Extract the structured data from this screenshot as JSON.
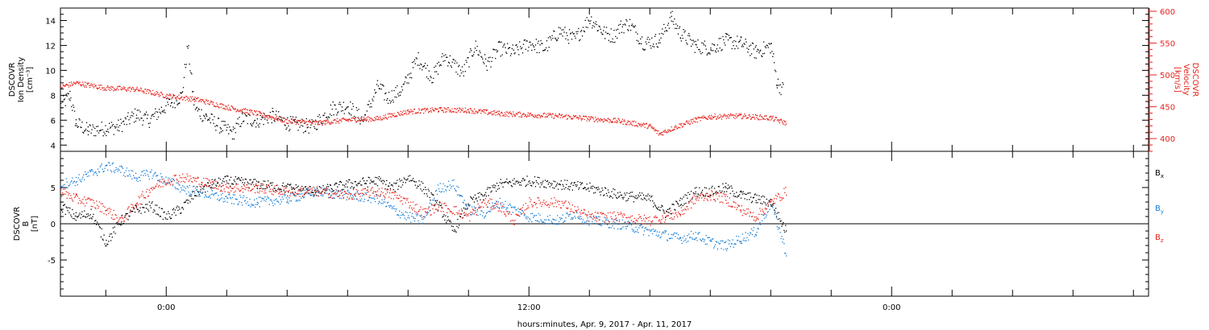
{
  "chart_data": [
    {
      "type": "scatter",
      "title": "",
      "xlabel": "hours:minutes, Apr.  9, 2017 - Apr. 11, 2017",
      "x_range_hours": [
        -3.5,
        32.5
      ],
      "x_tick_labels": [
        {
          "hour": 0,
          "label": "0:00"
        },
        {
          "hour": 12,
          "label": "12:00"
        },
        {
          "hour": 24,
          "label": "0:00"
        }
      ],
      "data_end_hour": 20.5,
      "left_axis": {
        "label_lines": [
          "DSCOVR",
          "Ion Density",
          "[cm⁻³]"
        ],
        "ylim": [
          3.5,
          15
        ],
        "ticks": [
          4,
          6,
          8,
          10,
          12,
          14
        ],
        "color": "#000000"
      },
      "right_axis": {
        "label_lines": [
          "DSCOVR",
          "Velocity",
          "[km/s]"
        ],
        "ylim": [
          380,
          605
        ],
        "ticks": [
          400,
          450,
          500,
          550,
          600
        ],
        "color": "#e8231c"
      },
      "series": [
        {
          "axis": "left",
          "color": "#000000",
          "x": [
            -3.5,
            -3.2,
            -3.0,
            -2.6,
            -2.0,
            -1.6,
            -1.0,
            -0.6,
            0,
            0.5,
            0.7,
            0.9,
            1.0,
            1.3,
            1.8,
            2.2,
            2.5,
            3.0,
            3.5,
            4.0,
            4.8,
            5.5,
            6.0,
            6.5,
            7.0,
            7.3,
            7.8,
            8.3,
            8.8,
            9.2,
            9.8,
            10.2,
            10.6,
            11.0,
            11.5,
            12.0,
            12.5,
            13.0,
            13.5,
            14.0,
            14.5,
            14.8,
            15.0,
            15.3,
            15.8,
            16.3,
            16.7,
            17.0,
            17.5,
            18.0,
            18.5,
            19.0,
            19.5,
            20.0,
            20.2,
            20.4
          ],
          "y": [
            7.2,
            8.0,
            5.8,
            5.2,
            5.4,
            5.5,
            6.5,
            6.0,
            7.2,
            8.0,
            12.0,
            7.5,
            6.8,
            6.3,
            5.5,
            5.0,
            6.2,
            6.0,
            6.4,
            5.8,
            5.5,
            7.0,
            7.2,
            6.0,
            8.8,
            7.8,
            8.5,
            11.0,
            9.5,
            11.2,
            9.8,
            12.0,
            10.5,
            11.8,
            11.5,
            12.2,
            11.8,
            13.2,
            12.5,
            14.2,
            13.0,
            12.8,
            13.5,
            13.8,
            12.2,
            12.5,
            14.3,
            13.0,
            12.0,
            11.8,
            12.4,
            12.2,
            11.5,
            12.0,
            9.0,
            8.5
          ]
        },
        {
          "axis": "right",
          "color": "#e8231c",
          "x": [
            -3.5,
            -3.0,
            -2.0,
            -1.0,
            0,
            1.0,
            2.0,
            3.0,
            4.0,
            5.0,
            6.0,
            7.0,
            7.5,
            8.0,
            9.0,
            10.0,
            11.0,
            12.0,
            13.0,
            14.0,
            15.0,
            16.0,
            16.3,
            16.8,
            17.5,
            18.0,
            19.0,
            20.0,
            20.5
          ],
          "y": [
            482,
            488,
            480,
            478,
            468,
            462,
            450,
            440,
            428,
            425,
            430,
            432,
            438,
            443,
            446,
            445,
            440,
            438,
            436,
            432,
            428,
            420,
            408,
            418,
            430,
            435,
            436,
            433,
            425
          ]
        }
      ]
    },
    {
      "type": "scatter",
      "title": "",
      "xlabel": "hours:minutes, Apr.  9, 2017 - Apr. 11, 2017",
      "ylabel_lines": [
        "DSCOVR",
        "B",
        "[nT]"
      ],
      "ylim": [
        -10,
        10
      ],
      "ticks": [
        -5,
        0,
        5
      ],
      "zero_line": true,
      "series": [
        {
          "name": "B",
          "sub": "x",
          "color": "#000000",
          "x": [
            -3.5,
            -3.0,
            -2.5,
            -2.0,
            -1.5,
            -1.0,
            -0.5,
            0,
            0.5,
            1.0,
            1.5,
            2.0,
            3.0,
            4.0,
            5.0,
            6.0,
            7.0,
            7.5,
            8.0,
            8.5,
            9.0,
            9.5,
            10.0,
            10.5,
            11.0,
            12.0,
            13.0,
            14.0,
            15.0,
            16.0,
            16.5,
            17.0,
            17.5,
            18.0,
            18.5,
            19.0,
            19.5,
            20.0,
            20.5
          ],
          "y": [
            2.5,
            1.0,
            1.5,
            -2.5,
            0.5,
            2.0,
            2.5,
            1.0,
            2.2,
            4.5,
            5.5,
            6.0,
            5.5,
            5.0,
            4.5,
            5.5,
            6.0,
            5.0,
            6.5,
            5.0,
            2.5,
            -1.0,
            3.0,
            4.0,
            5.5,
            6.0,
            5.5,
            5.0,
            4.0,
            3.5,
            1.5,
            3.0,
            4.5,
            4.5,
            5.0,
            4.0,
            3.5,
            3.0,
            -1.0
          ]
        },
        {
          "name": "B",
          "sub": "y",
          "color": "#1a7fd6",
          "x": [
            -3.5,
            -3.0,
            -2.5,
            -2.0,
            -1.5,
            -1.0,
            -0.5,
            0,
            0.5,
            1.0,
            1.5,
            2.0,
            3.0,
            4.0,
            5.0,
            6.0,
            7.0,
            7.5,
            8.0,
            8.5,
            9.0,
            9.5,
            10.0,
            10.5,
            11.0,
            11.5,
            12.0,
            13.0,
            13.5,
            14.0,
            15.0,
            16.0,
            17.0,
            17.5,
            18.0,
            18.5,
            19.0,
            19.5,
            20.0,
            20.5
          ],
          "y": [
            5.5,
            6.0,
            7.0,
            8.0,
            7.5,
            6.5,
            7.0,
            6.0,
            5.0,
            4.5,
            4.0,
            3.5,
            3.0,
            3.5,
            4.5,
            4.0,
            3.5,
            2.0,
            1.0,
            0.5,
            5.0,
            5.5,
            2.0,
            1.5,
            3.0,
            2.0,
            1.0,
            0.5,
            1.5,
            0.5,
            0.0,
            -1.0,
            -2.0,
            -1.5,
            -2.5,
            -3.0,
            -2.0,
            -1.0,
            3.0,
            -4.0
          ]
        },
        {
          "name": "B",
          "sub": "z",
          "color": "#e8231c",
          "x": [
            -3.5,
            -3.0,
            -2.5,
            -2.0,
            -1.5,
            -1.0,
            -0.5,
            0,
            0.5,
            1.0,
            2.0,
            3.0,
            4.0,
            5.0,
            6.0,
            7.0,
            7.5,
            8.0,
            8.5,
            9.0,
            9.5,
            10.0,
            10.5,
            11.0,
            11.5,
            12.0,
            13.0,
            13.5,
            14.0,
            15.0,
            16.0,
            17.0,
            17.5,
            18.0,
            18.5,
            19.0,
            19.5,
            20.0,
            20.5
          ],
          "y": [
            4.5,
            3.5,
            3.0,
            2.0,
            0.5,
            3.0,
            5.0,
            6.0,
            6.5,
            6.0,
            5.0,
            5.0,
            4.5,
            4.5,
            4.0,
            4.5,
            4.0,
            3.0,
            1.5,
            2.5,
            2.0,
            1.0,
            3.0,
            2.5,
            0.5,
            3.0,
            3.0,
            2.0,
            1.0,
            1.0,
            0.5,
            1.5,
            3.5,
            4.0,
            3.5,
            2.0,
            1.0,
            3.0,
            4.5
          ]
        }
      ]
    }
  ]
}
